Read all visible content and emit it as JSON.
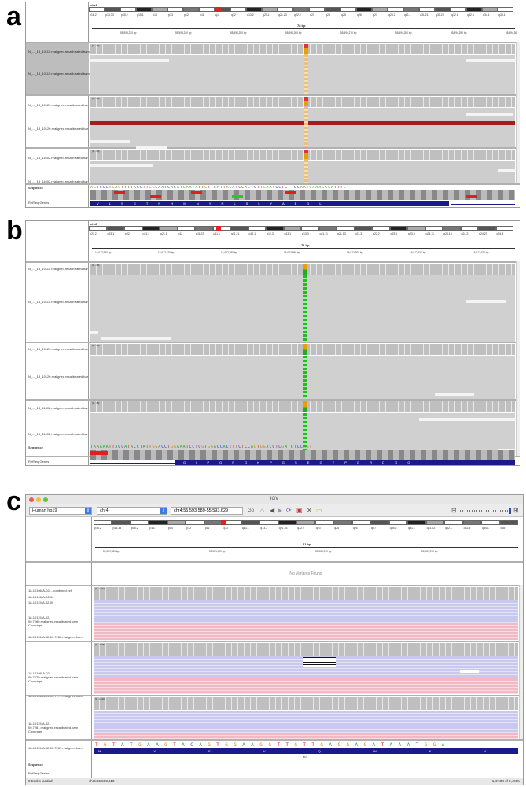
{
  "panels": {
    "a": {
      "letter": "a"
    },
    "b": {
      "letter": "b"
    },
    "c": {
      "letter": "c"
    }
  },
  "panel_a": {
    "chrom": "chr4",
    "bands": [
      "p16.2",
      "p15.33",
      "p15.2",
      "p15.1",
      "p14",
      "p13",
      "p12",
      "p11",
      "q11",
      "q12",
      "q13.2",
      "q21.1",
      "q21.23",
      "q22.2",
      "q23",
      "q24",
      "q25",
      "q26",
      "q27",
      "q28.2",
      "q31.1",
      "q31.21",
      "q31.23",
      "q32.1",
      "q32.3",
      "q34.1",
      "q35.1"
    ],
    "width_label": "78 bp",
    "ticks": [
      "55,594,230 bp",
      "55,594,240 bp",
      "55,594,250 bp",
      "55,594,260 bp",
      "55,594,270 bp",
      "55,594,280 bp",
      "55,594,290 bp",
      "55,594,30"
    ],
    "tracks": [
      {
        "cov": "N_..._18_10115.realigned.recalib rated.bam Coverage",
        "bam": "N_..._18_10115.realigned.recalib rated.bam",
        "range": "[0 - 70]"
      },
      {
        "cov": "N_..._18_10120.realigned.recalib rated.bam Coverage",
        "bam": "N_..._18_10120.realigned.recalib rated.bam",
        "range": "[0 - 54]"
      },
      {
        "cov": "N_..._18_11602.realigned.recalib rated.bam Coverage",
        "bam": "N_..._18_11602.realigned.recalib rated.bam",
        "range": "[0 - 70]"
      }
    ],
    "sequence_label": "Sequence",
    "refseq_label": "RefSeq Genes",
    "sequence": "AGTCCCTGAGTTTTACCTTGGGAATCACATGAATATTGTTCATTAGATCCAGTCTTGAATCCTCTTCCAATGAAAGCGATTTG",
    "aa": "V L S G T N H M N Y N L S L Y A E D L"
  },
  "panel_b": {
    "chrom": "chr8",
    "bands": [
      "p23.2",
      "p23.1",
      "p22",
      "p21.3",
      "p21.1",
      "p12",
      "p11.23",
      "p11.1",
      "q11.21",
      "q12.1",
      "q12.3",
      "q13.1",
      "q13.3",
      "q21.11",
      "q21.13",
      "q21.3",
      "q22.2",
      "q23.1",
      "q23.3",
      "q24.11",
      "q24.13",
      "q24.21",
      "q24.23",
      "q24.3"
    ],
    "width_label": "71 bp",
    "ticks": [
      "16,012,560 bp",
      "16,012,570 bp",
      "16,012,580 bp",
      "16,012,590 bp",
      "16,012,600 bp",
      "16,012,610 bp",
      "16,012,620 bp"
    ],
    "tracks": [
      {
        "cov": "N_..._18_10115.realigned.recalib rated.bam Coverage",
        "bam": "N_..._18_10115.realigned.recalib rated.bam",
        "range": "[0 - 45]"
      },
      {
        "cov": "N_..._18_10120.realigned.recalib rated.bam Coverage",
        "bam": "N_..._18_10120.realigned.recalib rated.bam",
        "range": "[0 - 70]"
      },
      {
        "cov": "N_..._18_11602.realigned.recalib rated.bam Coverage",
        "bam": "N_..._18_11602.realigned.recalib rated.bam",
        "range": "[0 - 45]"
      }
    ],
    "sequence_label": "Sequence",
    "refseq_label": "RefSeq Genes",
    "sequence": "TAAAAATTACCATACCTATTGGACCTGGAAATCCTCGTGGACCACTTTCTCCAGTGGACCTCGATCTCCAGT",
    "aa": "G I P G P G K P G S E G T P G R D G G"
  },
  "panel_c": {
    "window_title": "IGV",
    "genome": "Human hg19",
    "chrom": "chr4",
    "locus": "chr4:55,593,589-55,593,629",
    "go_label": "Go",
    "bands": [
      "p16.2",
      "p15.33",
      "p15.2",
      "p15.1",
      "p14",
      "p12",
      "p11",
      "q12",
      "q13.1",
      "q13.3",
      "q21.23",
      "q22.2",
      "q23",
      "q25",
      "q26",
      "q27",
      "q28.2",
      "q31.1",
      "q31.22",
      "q32.1",
      "q32.3",
      "q34.1",
      "q35"
    ],
    "width_label": "41 bp",
    "ticks": [
      "55,593,590 bp",
      "55,593,600 bp",
      "55,593,610 bp",
      "55,593,620 bp"
    ],
    "vcf_tracks": [
      "18-10106-A-02-...combined.vcf",
      "18-10106-A-02-00",
      "18-10115-A-02-00"
    ],
    "no_variants": "No Variants Found",
    "tracks": [
      {
        "cov": "18-10115-A-02-00.7280.realigned.recalibrated.bam Coverage",
        "bam": "18-10115-A-02-00.7280.realigned.bam",
        "range": "[0 - 1132]"
      },
      {
        "cov": "18-10106-A-02-00.7279.realigned.recalibrated.bam Coverage",
        "bam": "18-10106-A-02-00.7279.realigned.bam",
        "range": "[0 - 2645]"
      },
      {
        "cov": "18-10115-A-02-00.7281.realigned.recalibrated.bam Coverage",
        "bam": "18-10115-A-02-00.7281.realigned.bam",
        "range": "[0 - 1610]"
      }
    ],
    "sequence_label": "Sequence",
    "refseq_label": "RefSeq Genes",
    "sequence": "TGTATGAAGTACAGTGGAAGGTTGTTGAGGAGATAAATGGA",
    "aa": "M Y E V Q W K V V E E I N G",
    "gene_name": "KIT",
    "status_left": "9 tracks loaded",
    "status_locus": "chr4:55,593,610",
    "status_mem": "1,474M of 2,496M"
  },
  "colors": {
    "A": "#22aa22",
    "C": "#2244ee",
    "G": "#cc8800",
    "T": "#dd2222",
    "gene": "#1a1a8a",
    "blue_read": "#c9c9f0",
    "pink_read": "#f0b9c4"
  }
}
